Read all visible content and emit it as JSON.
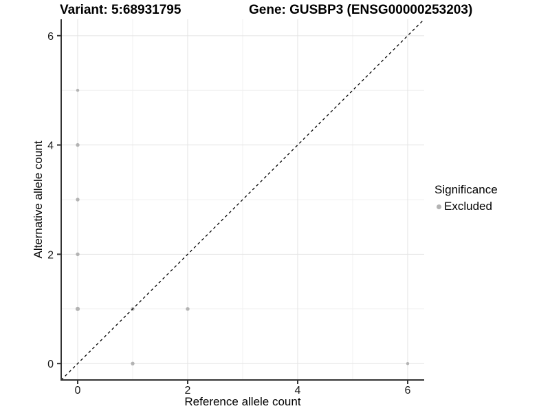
{
  "titles": {
    "variant": "Variant: 5:68931795",
    "gene": "Gene: GUSBP3 (ENSG00000253203)"
  },
  "legend": {
    "title": "Significance",
    "items": [
      {
        "label": "Excluded",
        "color": "#b3b3b3"
      }
    ]
  },
  "chart_data": {
    "type": "scatter",
    "xlabel": "Reference allele count",
    "ylabel": "Alternative allele count",
    "xlim": [
      -0.3,
      6.3
    ],
    "ylim": [
      -0.3,
      6.3
    ],
    "xticks": [
      0,
      2,
      4,
      6
    ],
    "yticks": [
      0,
      2,
      4,
      6
    ],
    "minor_xticks": [
      1,
      3,
      5
    ],
    "minor_yticks": [
      1,
      3,
      5
    ],
    "grid": "major-and-minor",
    "identity_line": {
      "slope": 1,
      "intercept": 0,
      "style": "dashed",
      "color": "#000000"
    },
    "series": [
      {
        "name": "Excluded",
        "color": "#b3b3b3",
        "points": [
          {
            "x": 0,
            "y": 1,
            "r": 3.1
          },
          {
            "x": 0,
            "y": 2,
            "r": 2.7
          },
          {
            "x": 0,
            "y": 3,
            "r": 2.7
          },
          {
            "x": 0,
            "y": 4,
            "r": 2.7
          },
          {
            "x": 0,
            "y": 5,
            "r": 2.2
          },
          {
            "x": 1,
            "y": 0,
            "r": 2.7
          },
          {
            "x": 1,
            "y": 1,
            "r": 2.7
          },
          {
            "x": 2,
            "y": 1,
            "r": 2.7
          },
          {
            "x": 6,
            "y": 0,
            "r": 2.2
          }
        ]
      }
    ],
    "style": {
      "axis_line_color": "#333333",
      "tick_label_color": "#1a1a1a",
      "major_grid_color": "#e3e3e3",
      "minor_grid_color": "#f0f0f0"
    }
  }
}
